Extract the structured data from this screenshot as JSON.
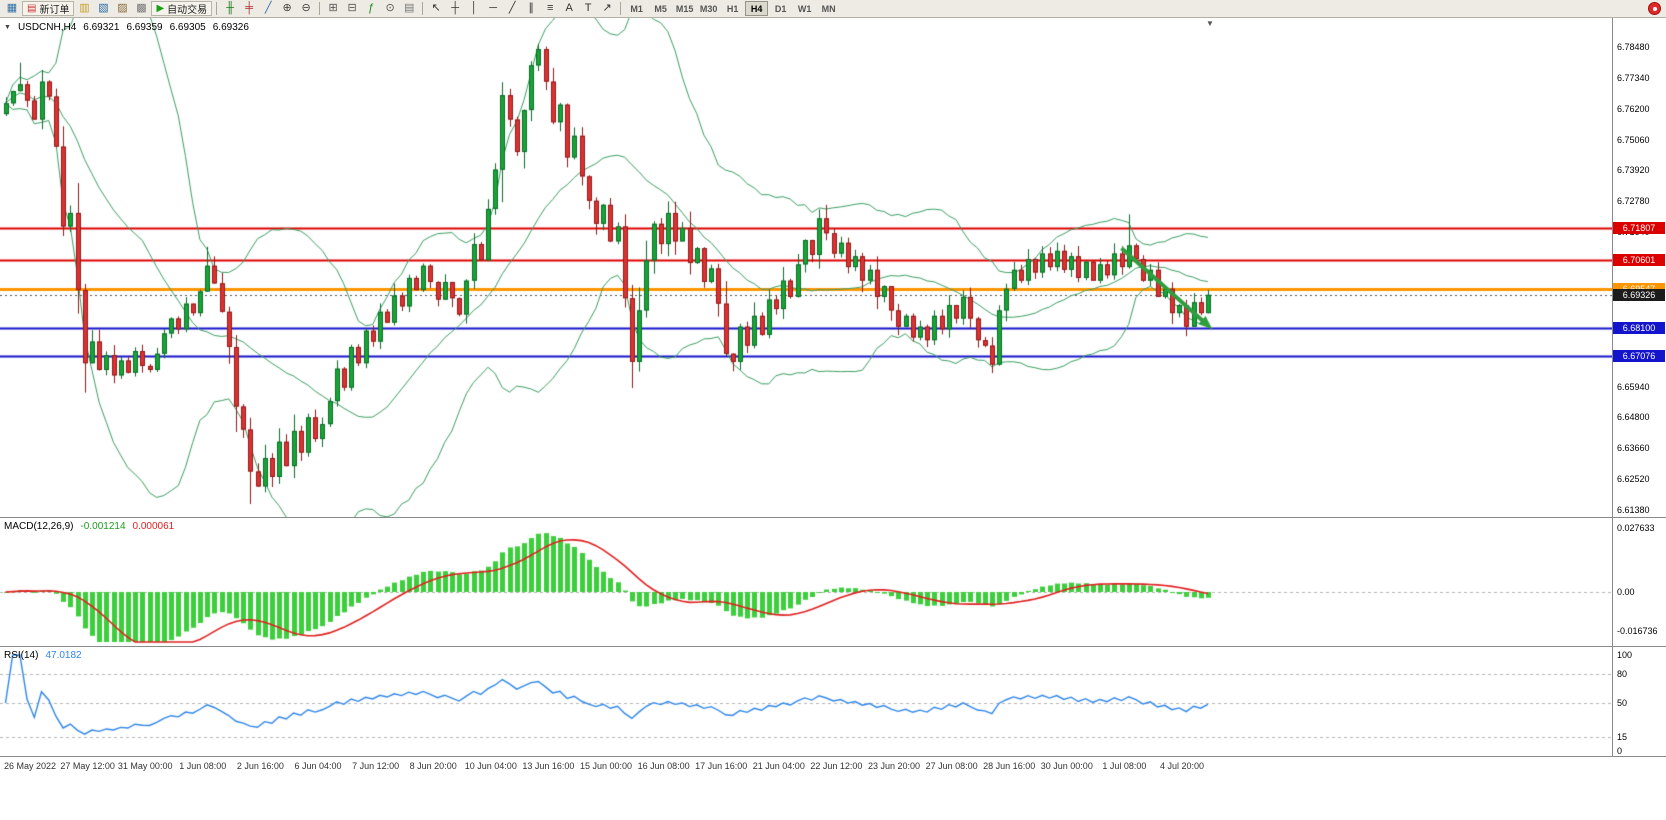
{
  "toolbar": {
    "items": [
      {
        "type": "icon",
        "name": "new-chart-icon",
        "glyph": "▦",
        "color": "#2e6da4"
      },
      {
        "type": "button",
        "name": "new-order-button",
        "glyph": "▤",
        "color": "#cc3333",
        "label": "新订单"
      },
      {
        "type": "icon",
        "name": "chart-profiles-icon",
        "glyph": "▥",
        "color": "#c8a028"
      },
      {
        "type": "icon",
        "name": "market-watch-icon",
        "glyph": "▧",
        "color": "#2e6da4"
      },
      {
        "type": "icon",
        "name": "navigator-icon",
        "glyph": "▨",
        "color": "#8a6a3a"
      },
      {
        "type": "icon",
        "name": "terminal-icon",
        "glyph": "▩",
        "color": "#777777"
      },
      {
        "type": "button",
        "name": "auto-trading-button",
        "glyph": "▶",
        "color": "#18a018",
        "label": "自动交易"
      },
      {
        "type": "sep"
      },
      {
        "type": "icon",
        "name": "ohlc-bars-icon",
        "glyph": "╫",
        "color": "#1a7a1a"
      },
      {
        "type": "icon",
        "name": "candlesticks-icon",
        "glyph": "╪",
        "color": "#b03030"
      },
      {
        "type": "icon",
        "name": "line-chart-icon",
        "glyph": "╱",
        "color": "#2e6da4"
      },
      {
        "type": "icon",
        "name": "zoom-in-icon",
        "glyph": "⊕",
        "color": "#444444"
      },
      {
        "type": "icon",
        "name": "zoom-out-icon",
        "glyph": "⊖",
        "color": "#444444"
      },
      {
        "type": "sep"
      },
      {
        "type": "icon",
        "name": "tile-windows-icon",
        "glyph": "⊞",
        "color": "#555555"
      },
      {
        "type": "icon",
        "name": "cascade-windows-icon",
        "glyph": "⊟",
        "color": "#555555"
      },
      {
        "type": "icon",
        "name": "indicators-icon",
        "glyph": "ƒ",
        "color": "#1a8a1a"
      },
      {
        "type": "icon",
        "name": "periods-icon",
        "glyph": "⊙",
        "color": "#555555"
      },
      {
        "type": "icon",
        "name": "templates-icon",
        "glyph": "▤",
        "color": "#777777"
      },
      {
        "type": "sep"
      },
      {
        "type": "icon",
        "name": "cursor-icon",
        "glyph": "↖",
        "color": "#333333"
      },
      {
        "type": "icon",
        "name": "crosshair-icon",
        "glyph": "┼",
        "color": "#333333"
      },
      {
        "type": "icon",
        "name": "vertical-line-icon",
        "glyph": "│",
        "color": "#333333"
      },
      {
        "type": "icon",
        "name": "horizontal-line-icon",
        "glyph": "─",
        "color": "#333333"
      },
      {
        "type": "icon",
        "name": "trendline-icon",
        "glyph": "╱",
        "color": "#333333"
      },
      {
        "type": "icon",
        "name": "channel-icon",
        "glyph": "∥",
        "color": "#333333"
      },
      {
        "type": "icon",
        "name": "fibonacci-icon",
        "glyph": "≡",
        "color": "#333333"
      },
      {
        "type": "icon",
        "name": "text-icon",
        "glyph": "A",
        "color": "#333333"
      },
      {
        "type": "icon",
        "name": "label-icon",
        "glyph": "T",
        "color": "#333333"
      },
      {
        "type": "icon",
        "name": "arrows-icon",
        "glyph": "↗",
        "color": "#333333"
      },
      {
        "type": "sep"
      }
    ],
    "timeframes": [
      "M1",
      "M5",
      "M15",
      "M30",
      "H1",
      "H4",
      "D1",
      "W1",
      "MN"
    ],
    "active_timeframe": "H4"
  },
  "symbol_line": {
    "toggle_glyph": "▼",
    "symbol": "USDCNH,H4",
    "open": "6.69321",
    "high": "6.69359",
    "low": "6.69305",
    "close": "6.69326"
  },
  "panels": {
    "macd": {
      "title": "MACD(12,26,9)",
      "value": "-0.001214",
      "signal_value": "0.000061"
    },
    "rsi": {
      "title": "RSI(14)",
      "value": "47.0182"
    }
  },
  "chart_data": {
    "type": "candlestick",
    "symbol": "USDCNH",
    "timeframe": "H4",
    "shift_marker_glyph": "▼",
    "price_axis": [
      6.7848,
      6.7734,
      6.762,
      6.7506,
      6.7392,
      6.7278,
      6.7164,
      6.705,
      6.6594,
      6.648,
      6.6366,
      6.6252,
      6.6138
    ],
    "x_axis": [
      "26 May 2022",
      "27 May 12:00",
      "31 May 00:00",
      "1 Jun 08:00",
      "2 Jun 16:00",
      "6 Jun 04:00",
      "7 Jun 12:00",
      "8 Jun 20:00",
      "10 Jun 04:00",
      "13 Jun 16:00",
      "15 Jun 00:00",
      "16 Jun 08:00",
      "17 Jun 16:00",
      "21 Jun 04:00",
      "22 Jun 12:00",
      "23 Jun 20:00",
      "27 Jun 08:00",
      "28 Jun 16:00",
      "30 Jun 00:00",
      "1 Jul 08:00",
      "4 Jul 20:00"
    ],
    "macd_axis": [
      "0.027633",
      "0.00",
      "-0.016736"
    ],
    "rsi_axis": [
      "100",
      "80",
      "50",
      "15",
      "0"
    ],
    "hlines": [
      {
        "price": 6.71807,
        "color": "#dd0000",
        "width": 2,
        "label": "6.71807"
      },
      {
        "price": 6.70601,
        "color": "#dd0000",
        "width": 2,
        "label": "6.70601"
      },
      {
        "price": 6.69547,
        "color": "#ff9500",
        "width": 3,
        "label": "6.69547"
      },
      {
        "price": 6.681,
        "color": "#1414cc",
        "width": 2,
        "label": "6.68100"
      },
      {
        "price": 6.67076,
        "color": "#1414cc",
        "width": 2,
        "label": "6.67076"
      }
    ],
    "current_price": {
      "value": 6.69326,
      "label": "6.69326"
    },
    "candles": {
      "first_open": 6.76,
      "closes": [
        6.764,
        6.7685,
        6.771,
        6.765,
        6.758,
        6.772,
        6.7665,
        6.748,
        6.7185,
        6.7235,
        6.695,
        6.668,
        6.676,
        6.6655,
        6.671,
        6.6635,
        6.669,
        6.6645,
        6.6725,
        6.667,
        6.6655,
        6.6715,
        6.679,
        6.6845,
        6.6805,
        6.69,
        6.6865,
        6.6945,
        6.704,
        6.6975,
        6.687,
        6.674,
        6.652,
        6.6435,
        6.628,
        6.6225,
        6.633,
        6.626,
        6.639,
        6.63,
        6.643,
        6.635,
        6.648,
        6.64,
        6.6455,
        6.654,
        6.666,
        6.659,
        6.674,
        6.668,
        6.68,
        6.676,
        6.687,
        6.683,
        6.693,
        6.689,
        6.6995,
        6.695,
        6.704,
        6.698,
        6.6915,
        6.698,
        6.692,
        6.686,
        6.6985,
        6.712,
        6.706,
        6.725,
        6.7395,
        6.767,
        6.758,
        6.746,
        6.7615,
        6.778,
        6.784,
        6.772,
        6.757,
        6.7635,
        6.744,
        6.752,
        6.737,
        6.728,
        6.7195,
        6.7265,
        6.713,
        6.7185,
        6.692,
        6.6685,
        6.6875,
        6.706,
        6.7195,
        6.712,
        6.7235,
        6.713,
        6.718,
        6.705,
        6.7105,
        6.698,
        6.703,
        6.69,
        6.6715,
        6.6685,
        6.6815,
        6.6745,
        6.6855,
        6.6785,
        6.6915,
        6.688,
        6.6985,
        6.6925,
        6.7045,
        6.7135,
        6.708,
        6.7215,
        6.716,
        6.7085,
        6.7125,
        6.7035,
        6.7075,
        6.6985,
        6.7025,
        6.6925,
        6.6965,
        6.6875,
        6.6815,
        6.6855,
        6.6775,
        6.6815,
        6.6765,
        6.6855,
        6.6805,
        6.6895,
        6.6845,
        6.6925,
        6.6845,
        6.6765,
        6.6745,
        6.6675,
        6.6875,
        6.6955,
        6.7025,
        6.6985,
        6.7065,
        6.7015,
        6.7085,
        6.7035,
        6.7095,
        6.7025,
        6.7075,
        6.6995,
        6.7055,
        6.6985,
        6.7045,
        6.7005,
        6.7085,
        6.7035,
        6.7115,
        6.7065,
        6.6985,
        6.7025,
        6.6925,
        6.6955,
        6.6865,
        6.6895,
        6.6815,
        6.6905,
        6.6865,
        6.69326
      ],
      "extremes": {
        "2": {
          "h": 6.779
        },
        "8": {
          "l": 6.715
        },
        "28": {
          "h": 6.711
        },
        "32": {
          "l": 6.646
        },
        "34": {
          "l": 6.616
        },
        "69": {
          "h": 6.77
        },
        "74": {
          "h": 6.7848
        },
        "87": {
          "l": 6.665
        },
        "92": {
          "h": 6.727
        },
        "101": {
          "l": 6.665
        },
        "114": {
          "h": 6.7265
        },
        "137": {
          "l": 6.665
        },
        "156": {
          "h": 6.723
        },
        "164": {
          "l": 6.678
        }
      }
    },
    "indicators": {
      "bollinger_period": 20,
      "bollinger_deviation": 2,
      "macd_fast": 12,
      "macd_slow": 26,
      "macd_signal": 9,
      "rsi_period": 14,
      "rsi_levels": [
        80,
        50,
        15
      ]
    },
    "trend_arrow": {
      "from_bar": 155,
      "from_price": 6.7105,
      "to_bar": 167,
      "to_price": 6.682,
      "color": "#2f9e3f"
    },
    "colors": {
      "candle_up": "#17a635",
      "candle_up_border": "#0b6b2a",
      "candle_down": "#de3232",
      "candle_down_border": "#8f1a1a",
      "bollinger": "#3c9e63",
      "macd_histogram": "#3ccf3c",
      "macd_signal_line": "#e02020",
      "rsi_line": "#2f86eb"
    }
  }
}
